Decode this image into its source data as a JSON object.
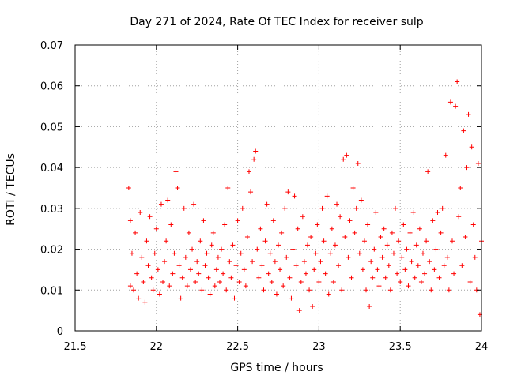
{
  "chart_data": {
    "type": "scatter",
    "title": "Day 271 of 2024, Rate Of TEC Index for receiver sulp",
    "xlabel": "GPS time / hours",
    "ylabel": "ROTI / TECUs",
    "xlim": [
      21.5,
      24
    ],
    "ylim": [
      0,
      0.07
    ],
    "x_ticks": [
      21.5,
      22,
      22.5,
      23,
      23.5,
      24
    ],
    "x_tick_labels": [
      "21.5",
      "22",
      "22.5",
      "23",
      "23.5",
      "24"
    ],
    "y_ticks": [
      0,
      0.01,
      0.02,
      0.03,
      0.04,
      0.05,
      0.06,
      0.07
    ],
    "y_tick_labels": [
      "0",
      "0.01",
      "0.02",
      "0.03",
      "0.04",
      "0.05",
      "0.06",
      "0.07"
    ],
    "grid": true,
    "marker": "+",
    "color": "#ff0000",
    "series": [
      {
        "name": "ROTI",
        "points": [
          [
            21.83,
            0.035
          ],
          [
            21.84,
            0.027
          ],
          [
            21.84,
            0.011
          ],
          [
            21.85,
            0.019
          ],
          [
            21.86,
            0.01
          ],
          [
            21.87,
            0.024
          ],
          [
            21.88,
            0.014
          ],
          [
            21.89,
            0.008
          ],
          [
            21.9,
            0.029
          ],
          [
            21.91,
            0.018
          ],
          [
            21.92,
            0.012
          ],
          [
            21.93,
            0.007
          ],
          [
            21.94,
            0.022
          ],
          [
            21.95,
            0.016
          ],
          [
            21.96,
            0.028
          ],
          [
            21.97,
            0.013
          ],
          [
            21.98,
            0.01
          ],
          [
            21.99,
            0.019
          ],
          [
            22.0,
            0.025
          ],
          [
            22.01,
            0.015
          ],
          [
            22.02,
            0.009
          ],
          [
            22.03,
            0.031
          ],
          [
            22.04,
            0.012
          ],
          [
            22.05,
            0.017
          ],
          [
            22.06,
            0.022
          ],
          [
            22.07,
            0.032
          ],
          [
            22.08,
            0.011
          ],
          [
            22.09,
            0.026
          ],
          [
            22.1,
            0.014
          ],
          [
            22.11,
            0.019
          ],
          [
            22.12,
            0.039
          ],
          [
            22.13,
            0.035
          ],
          [
            22.14,
            0.016
          ],
          [
            22.15,
            0.008
          ],
          [
            22.16,
            0.013
          ],
          [
            22.17,
            0.03
          ],
          [
            22.18,
            0.018
          ],
          [
            22.19,
            0.011
          ],
          [
            22.2,
            0.024
          ],
          [
            22.21,
            0.015
          ],
          [
            22.22,
            0.02
          ],
          [
            22.23,
            0.031
          ],
          [
            22.24,
            0.012
          ],
          [
            22.25,
            0.017
          ],
          [
            22.26,
            0.014
          ],
          [
            22.27,
            0.022
          ],
          [
            22.28,
            0.01
          ],
          [
            22.29,
            0.027
          ],
          [
            22.3,
            0.016
          ],
          [
            22.31,
            0.019
          ],
          [
            22.32,
            0.013
          ],
          [
            22.33,
            0.009
          ],
          [
            22.34,
            0.021
          ],
          [
            22.35,
            0.024
          ],
          [
            22.36,
            0.011
          ],
          [
            22.37,
            0.015
          ],
          [
            22.38,
            0.018
          ],
          [
            22.39,
            0.012
          ],
          [
            22.4,
            0.02
          ],
          [
            22.41,
            0.014
          ],
          [
            22.42,
            0.026
          ],
          [
            22.43,
            0.01
          ],
          [
            22.44,
            0.035
          ],
          [
            22.45,
            0.017
          ],
          [
            22.46,
            0.013
          ],
          [
            22.47,
            0.021
          ],
          [
            22.48,
            0.008
          ],
          [
            22.49,
            0.016
          ],
          [
            22.5,
            0.027
          ],
          [
            22.51,
            0.012
          ],
          [
            22.52,
            0.019
          ],
          [
            22.53,
            0.03
          ],
          [
            22.54,
            0.015
          ],
          [
            22.55,
            0.011
          ],
          [
            22.56,
            0.023
          ],
          [
            22.57,
            0.039
          ],
          [
            22.58,
            0.034
          ],
          [
            22.59,
            0.017
          ],
          [
            22.6,
            0.042
          ],
          [
            22.61,
            0.044
          ],
          [
            22.62,
            0.02
          ],
          [
            22.63,
            0.013
          ],
          [
            22.64,
            0.025
          ],
          [
            22.65,
            0.016
          ],
          [
            22.66,
            0.01
          ],
          [
            22.67,
            0.022
          ],
          [
            22.68,
            0.031
          ],
          [
            22.69,
            0.014
          ],
          [
            22.7,
            0.019
          ],
          [
            22.71,
            0.012
          ],
          [
            22.72,
            0.027
          ],
          [
            22.73,
            0.017
          ],
          [
            22.74,
            0.009
          ],
          [
            22.75,
            0.021
          ],
          [
            22.76,
            0.015
          ],
          [
            22.77,
            0.024
          ],
          [
            22.78,
            0.011
          ],
          [
            22.79,
            0.03
          ],
          [
            22.8,
            0.018
          ],
          [
            22.81,
            0.034
          ],
          [
            22.82,
            0.013
          ],
          [
            22.83,
            0.008
          ],
          [
            22.84,
            0.02
          ],
          [
            22.85,
            0.033
          ],
          [
            22.86,
            0.016
          ],
          [
            22.87,
            0.025
          ],
          [
            22.88,
            0.005
          ],
          [
            22.89,
            0.012
          ],
          [
            22.9,
            0.028
          ],
          [
            22.91,
            0.017
          ],
          [
            22.92,
            0.014
          ],
          [
            22.93,
            0.021
          ],
          [
            22.94,
            0.01
          ],
          [
            22.95,
            0.023
          ],
          [
            22.96,
            0.006
          ],
          [
            22.97,
            0.015
          ],
          [
            22.98,
            0.019
          ],
          [
            22.99,
            0.026
          ],
          [
            23.0,
            0.012
          ],
          [
            23.01,
            0.017
          ],
          [
            23.02,
            0.03
          ],
          [
            23.03,
            0.022
          ],
          [
            23.04,
            0.014
          ],
          [
            23.05,
            0.033
          ],
          [
            23.06,
            0.009
          ],
          [
            23.07,
            0.019
          ],
          [
            23.08,
            0.025
          ],
          [
            23.09,
            0.012
          ],
          [
            23.1,
            0.021
          ],
          [
            23.11,
            0.031
          ],
          [
            23.12,
            0.016
          ],
          [
            23.13,
            0.028
          ],
          [
            23.14,
            0.01
          ],
          [
            23.15,
            0.042
          ],
          [
            23.16,
            0.023
          ],
          [
            23.17,
            0.043
          ],
          [
            23.18,
            0.018
          ],
          [
            23.19,
            0.027
          ],
          [
            23.2,
            0.013
          ],
          [
            23.21,
            0.035
          ],
          [
            23.22,
            0.024
          ],
          [
            23.23,
            0.03
          ],
          [
            23.24,
            0.041
          ],
          [
            23.25,
            0.019
          ],
          [
            23.26,
            0.032
          ],
          [
            23.27,
            0.015
          ],
          [
            23.28,
            0.022
          ],
          [
            23.29,
            0.01
          ],
          [
            23.3,
            0.026
          ],
          [
            23.31,
            0.006
          ],
          [
            23.32,
            0.017
          ],
          [
            23.33,
            0.013
          ],
          [
            23.34,
            0.02
          ],
          [
            23.35,
            0.029
          ],
          [
            23.36,
            0.015
          ],
          [
            23.37,
            0.011
          ],
          [
            23.38,
            0.023
          ],
          [
            23.39,
            0.018
          ],
          [
            23.4,
            0.025
          ],
          [
            23.41,
            0.013
          ],
          [
            23.42,
            0.021
          ],
          [
            23.43,
            0.016
          ],
          [
            23.44,
            0.01
          ],
          [
            23.45,
            0.024
          ],
          [
            23.46,
            0.019
          ],
          [
            23.47,
            0.03
          ],
          [
            23.48,
            0.014
          ],
          [
            23.49,
            0.022
          ],
          [
            23.5,
            0.012
          ],
          [
            23.51,
            0.018
          ],
          [
            23.52,
            0.026
          ],
          [
            23.53,
            0.015
          ],
          [
            23.54,
            0.02
          ],
          [
            23.55,
            0.011
          ],
          [
            23.56,
            0.024
          ],
          [
            23.57,
            0.017
          ],
          [
            23.58,
            0.029
          ],
          [
            23.59,
            0.013
          ],
          [
            23.6,
            0.021
          ],
          [
            23.61,
            0.016
          ],
          [
            23.62,
            0.025
          ],
          [
            23.63,
            0.012
          ],
          [
            23.64,
            0.019
          ],
          [
            23.65,
            0.014
          ],
          [
            23.66,
            0.022
          ],
          [
            23.67,
            0.039
          ],
          [
            23.68,
            0.017
          ],
          [
            23.69,
            0.01
          ],
          [
            23.7,
            0.027
          ],
          [
            23.71,
            0.015
          ],
          [
            23.72,
            0.02
          ],
          [
            23.73,
            0.029
          ],
          [
            23.74,
            0.013
          ],
          [
            23.75,
            0.024
          ],
          [
            23.76,
            0.03
          ],
          [
            23.77,
            0.016
          ],
          [
            23.78,
            0.043
          ],
          [
            23.79,
            0.018
          ],
          [
            23.8,
            0.01
          ],
          [
            23.81,
            0.056
          ],
          [
            23.82,
            0.022
          ],
          [
            23.83,
            0.014
          ],
          [
            23.84,
            0.055
          ],
          [
            23.85,
            0.061
          ],
          [
            23.86,
            0.028
          ],
          [
            23.87,
            0.035
          ],
          [
            23.88,
            0.016
          ],
          [
            23.89,
            0.049
          ],
          [
            23.9,
            0.023
          ],
          [
            23.91,
            0.04
          ],
          [
            23.92,
            0.053
          ],
          [
            23.93,
            0.012
          ],
          [
            23.94,
            0.045
          ],
          [
            23.95,
            0.026
          ],
          [
            23.96,
            0.018
          ],
          [
            23.97,
            0.01
          ],
          [
            23.98,
            0.041
          ],
          [
            23.99,
            0.004
          ],
          [
            24.0,
            0.022
          ]
        ]
      }
    ]
  }
}
